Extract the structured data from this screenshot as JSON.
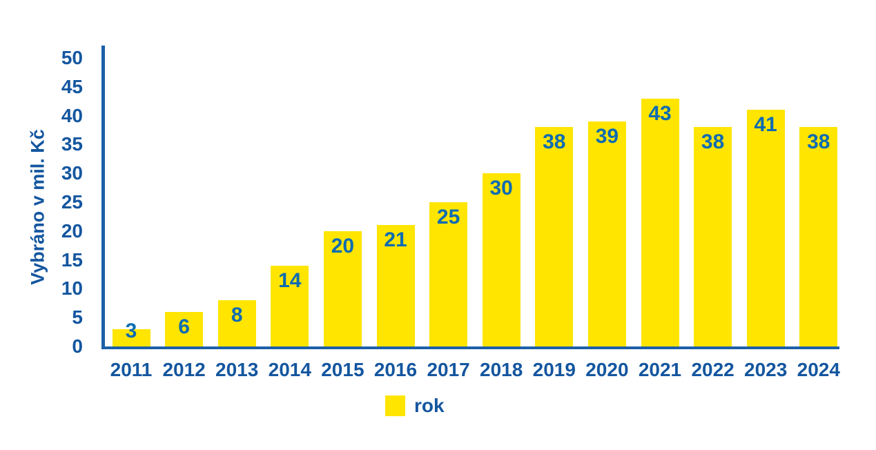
{
  "colors": {
    "background": "#ffffff",
    "bar_yellow": "#ffe500",
    "axis_text_blue": "#14569f",
    "value_text_blue": "#0c6bb3",
    "axis_line_blue": "#1c5fa8"
  },
  "chart_data": {
    "type": "bar",
    "title": "",
    "categories": [
      "2011",
      "2012",
      "2013",
      "2014",
      "2015",
      "2016",
      "2017",
      "2018",
      "2019",
      "2020",
      "2021",
      "2022",
      "2023",
      "2024"
    ],
    "values": [
      3,
      6,
      8,
      14,
      20,
      21,
      25,
      30,
      38,
      39,
      43,
      38,
      41,
      38
    ],
    "xlabel": "",
    "ylabel": "Vybráno v mil. Kč",
    "ylim": [
      0,
      50
    ],
    "ytick_step": 5,
    "ytick_labels": [
      "0",
      "5",
      "10",
      "15",
      "20",
      "25",
      "30",
      "35",
      "40",
      "45",
      "50"
    ],
    "grid": false,
    "value_labels_position": "inside-top",
    "legend": {
      "label": "rok",
      "position": "bottom"
    }
  }
}
